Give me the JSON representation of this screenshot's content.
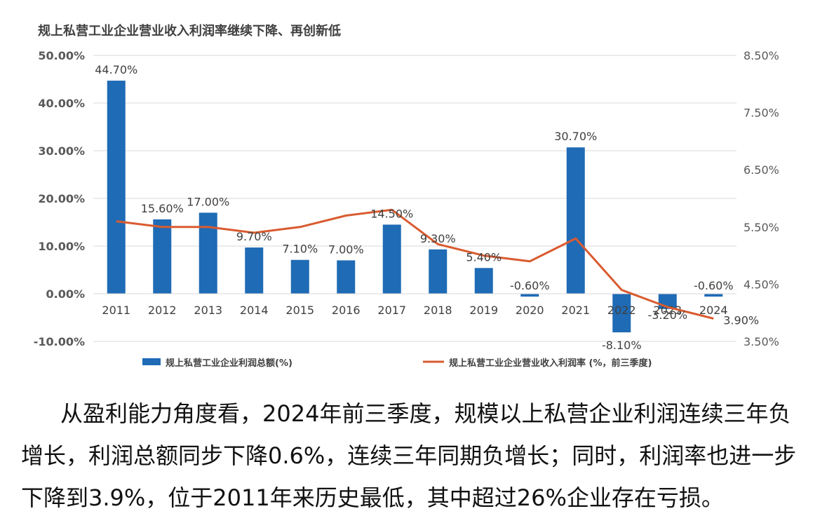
{
  "chart_data": {
    "type": "bar+line",
    "title": "规上私营工业企业营业收入利润率继续下降、再创新低",
    "categories": [
      "2011",
      "2012",
      "2013",
      "2014",
      "2015",
      "2016",
      "2017",
      "2018",
      "2019",
      "2020",
      "2021",
      "2022",
      "2023",
      "2024"
    ],
    "series": [
      {
        "name": "规上私营工业企业利润总额(%)",
        "type": "bar",
        "axis": "left",
        "color": "#1F6BB5",
        "values": [
          44.7,
          15.6,
          17.0,
          9.7,
          7.1,
          7.0,
          14.5,
          9.3,
          5.4,
          -0.6,
          30.7,
          -8.1,
          -3.2,
          -0.6
        ],
        "labels": [
          "44.70%",
          "15.60%",
          "17.00%",
          "9.70%",
          "7.10%",
          "7.00%",
          "14.50%",
          "9.30%",
          "5.40%",
          "-0.60%",
          "30.70%",
          "-8.10%",
          "-3.20%",
          "-0.60%"
        ]
      },
      {
        "name": "规上私营工业企业营业收入利润率 (%，前三季度)",
        "type": "line",
        "axis": "right",
        "color": "#D95B30",
        "values": [
          5.6,
          5.5,
          5.5,
          5.4,
          5.5,
          5.7,
          5.8,
          5.2,
          5.0,
          4.9,
          5.3,
          4.4,
          4.1,
          3.9
        ],
        "end_label": "3.90%"
      }
    ],
    "y_left": {
      "lim": [
        -10,
        50
      ],
      "ticks": [
        -10,
        0,
        10,
        20,
        30,
        40,
        50
      ],
      "tick_labels": [
        "-10.00%",
        "0.00%",
        "10.00%",
        "20.00%",
        "30.00%",
        "40.00%",
        "50.00%"
      ]
    },
    "y_right": {
      "lim": [
        3.5,
        8.5
      ],
      "ticks": [
        3.5,
        4.5,
        5.5,
        6.5,
        7.5,
        8.5
      ],
      "tick_labels": [
        "3.50%",
        "4.50%",
        "5.50%",
        "6.50%",
        "7.50%",
        "8.50%"
      ]
    },
    "grid": true,
    "legend_position": "bottom"
  },
  "caption": "从盈利能力角度看，2024年前三季度，规模以上私营企业利润连续三年负增长，利润总额同步下降0.6%，连续三年同期负增长；同时，利润率也进一步下降到3.9%，位于2011年来历史最低，其中超过26%企业存在亏损。"
}
